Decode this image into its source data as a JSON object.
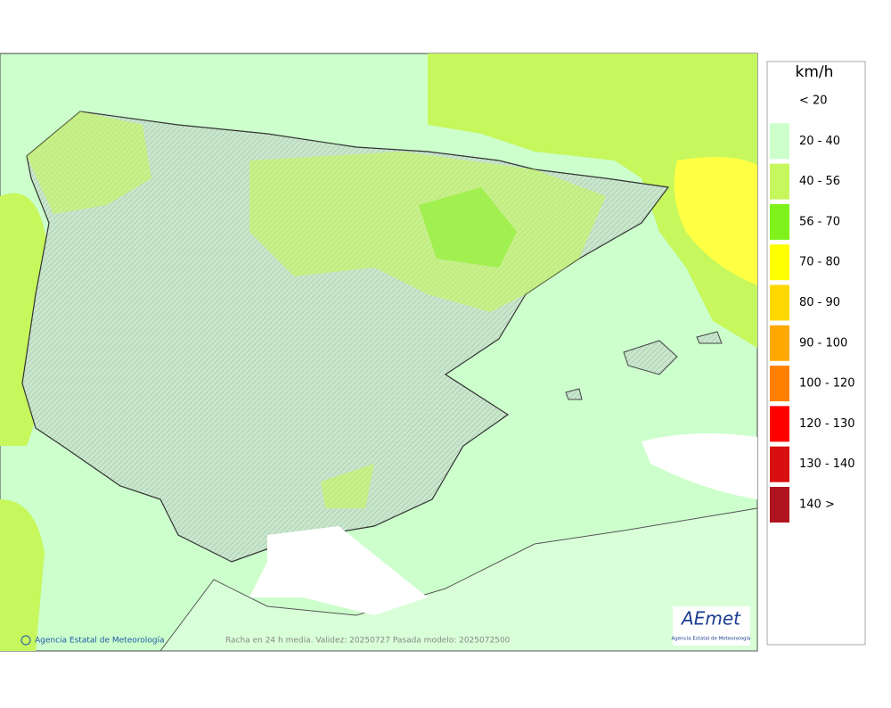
{
  "legend": {
    "unit": "km/h",
    "items": [
      {
        "label": "< 20",
        "color": "#ffffff"
      },
      {
        "label": "20 - 40",
        "color": "#ccffcc"
      },
      {
        "label": "40 - 56",
        "color": "#c6f75c"
      },
      {
        "label": "56 - 70",
        "color": "#7ef21a"
      },
      {
        "label": "70 - 80",
        "color": "#ffff00"
      },
      {
        "label": "80 - 90",
        "color": "#ffd700"
      },
      {
        "label": "90 - 100",
        "color": "#ffa800"
      },
      {
        "label": "100 - 120",
        "color": "#ff8000"
      },
      {
        "label": "120 - 130",
        "color": "#ff0000"
      },
      {
        "label": "130 - 140",
        "color": "#d90f0f"
      },
      {
        "label": "140 >",
        "color": "#b0141e"
      }
    ]
  },
  "footer": {
    "credit": "Agencia Estatal de Meteorología",
    "caption": "Racha en 24 h media. Validez: 20250727 Pasada modelo: 2025072500"
  },
  "logo": {
    "name": "AEmet",
    "subtitle": "Agencia Estatal de Meteorología"
  }
}
